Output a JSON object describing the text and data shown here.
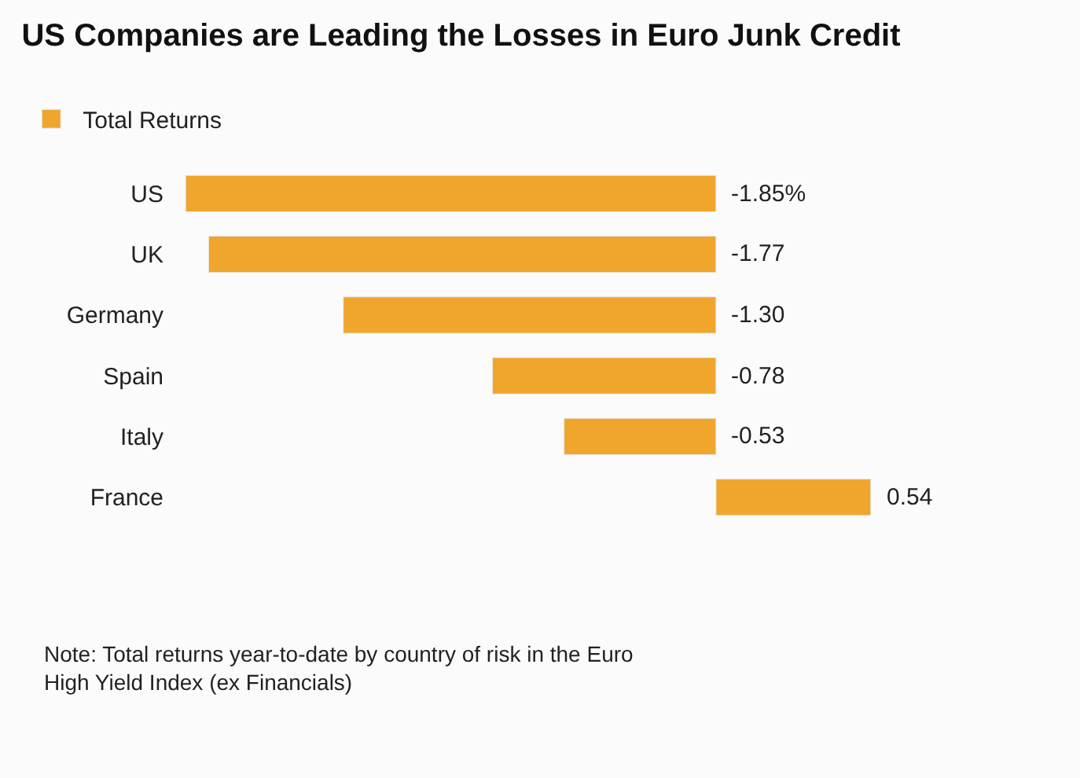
{
  "chart_data": {
    "type": "bar",
    "orientation": "horizontal",
    "title": "US Companies are Leading the Losses in Euro Junk Credit",
    "categories": [
      "US",
      "UK",
      "Germany",
      "Spain",
      "Italy",
      "France"
    ],
    "series": [
      {
        "name": "Total Returns",
        "color": "#f0a52c",
        "values": [
          -1.85,
          -1.77,
          -1.3,
          -0.78,
          -0.53,
          0.54
        ],
        "value_labels": [
          "-1.85%",
          "-1.77",
          "-1.30",
          "-0.78",
          "-0.53",
          "0.54"
        ]
      }
    ],
    "legend": "top left",
    "tick_labels": "y",
    "annotations": [
      "Note: Total returns year-to-date by country of risk in the Euro\nHigh Yield Index (ex Financials)"
    ]
  }
}
